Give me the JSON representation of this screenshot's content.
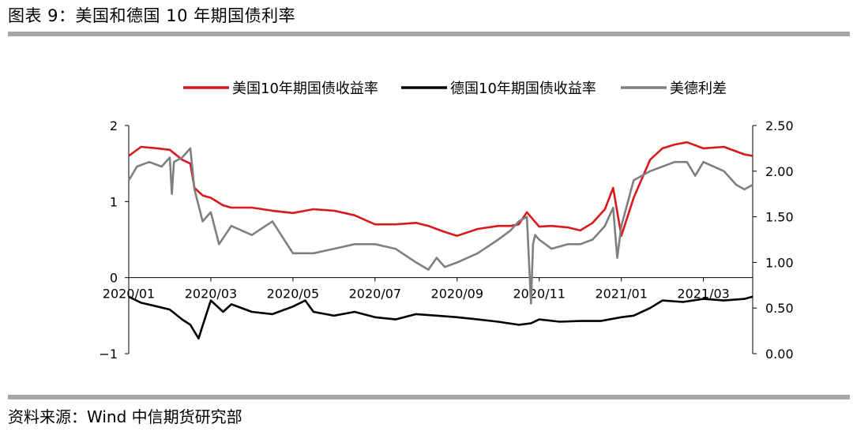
{
  "figure": {
    "title": "图表 9：美国和德国 10 年期国债利率",
    "source": "资料来源：Wind 中信期货研究部"
  },
  "colors": {
    "us": "#d7191c",
    "de": "#000000",
    "spread": "#7f7f7f",
    "rule": "#a6a6a6"
  },
  "chart_data": {
    "type": "line",
    "title": "",
    "legend_position": "top",
    "x_tick_labels": [
      "2020/01",
      "2020/03",
      "2020/05",
      "2020/07",
      "2020/09",
      "2020/11",
      "2021/01",
      "2021/03"
    ],
    "x_tick_months": [
      0,
      2,
      4,
      6,
      8,
      10,
      12,
      14
    ],
    "x_range_months": [
      0,
      15.2
    ],
    "y_left": {
      "range": [
        -1,
        2
      ],
      "ticks": [
        "2",
        "1",
        "0",
        "−1"
      ]
    },
    "y_right": {
      "range": [
        0,
        2.5
      ],
      "ticks": [
        "2.50",
        "2.00",
        "1.50",
        "1.00",
        "0.50",
        "0.00"
      ]
    },
    "series": [
      {
        "name": "美国10年期国债收益率",
        "axis": "left",
        "color": "#d7191c",
        "x": [
          0,
          0.3,
          0.7,
          1.0,
          1.3,
          1.5,
          1.6,
          1.8,
          2.0,
          2.3,
          2.5,
          3.0,
          3.5,
          4.0,
          4.5,
          5.0,
          5.5,
          6.0,
          6.5,
          7.0,
          7.3,
          7.7,
          8.0,
          8.5,
          9.0,
          9.3,
          9.5,
          9.7,
          10.0,
          10.3,
          10.7,
          11.0,
          11.3,
          11.6,
          11.8,
          12.0,
          12.3,
          12.7,
          13.0,
          13.3,
          13.6,
          14.0,
          14.5,
          15.0,
          15.2
        ],
        "y": [
          1.6,
          1.72,
          1.7,
          1.68,
          1.55,
          1.5,
          1.18,
          1.08,
          1.05,
          0.95,
          0.92,
          0.92,
          0.88,
          0.85,
          0.9,
          0.88,
          0.82,
          0.7,
          0.7,
          0.72,
          0.68,
          0.6,
          0.55,
          0.64,
          0.68,
          0.68,
          0.7,
          0.86,
          0.67,
          0.68,
          0.66,
          0.62,
          0.72,
          0.9,
          1.18,
          0.55,
          1.05,
          1.55,
          1.7,
          1.75,
          1.78,
          1.7,
          1.72,
          1.62,
          1.6
        ]
      },
      {
        "name": "德国10年期国债收益率",
        "axis": "left",
        "color": "#000000",
        "x": [
          0,
          0.3,
          0.7,
          1.0,
          1.3,
          1.5,
          1.7,
          1.8,
          2.0,
          2.3,
          2.5,
          3.0,
          3.5,
          4.0,
          4.3,
          4.5,
          5.0,
          5.5,
          6.0,
          6.5,
          7.0,
          7.5,
          8.0,
          8.5,
          9.0,
          9.5,
          9.8,
          10.0,
          10.5,
          11.0,
          11.5,
          12.0,
          12.3,
          12.7,
          13.0,
          13.5,
          14.0,
          14.5,
          15.0,
          15.2
        ],
        "y": [
          -0.25,
          -0.33,
          -0.38,
          -0.42,
          -0.55,
          -0.62,
          -0.8,
          -0.63,
          -0.3,
          -0.45,
          -0.35,
          -0.45,
          -0.48,
          -0.38,
          -0.3,
          -0.45,
          -0.5,
          -0.45,
          -0.52,
          -0.55,
          -0.48,
          -0.5,
          -0.52,
          -0.55,
          -0.58,
          -0.62,
          -0.6,
          -0.55,
          -0.58,
          -0.57,
          -0.57,
          -0.52,
          -0.5,
          -0.4,
          -0.3,
          -0.32,
          -0.28,
          -0.3,
          -0.28,
          -0.25
        ]
      },
      {
        "name": "美德利差",
        "axis": "right",
        "color": "#7f7f7f",
        "x": [
          0,
          0.2,
          0.5,
          0.8,
          1.0,
          1.05,
          1.1,
          1.3,
          1.5,
          1.6,
          1.8,
          2.0,
          2.2,
          2.5,
          3.0,
          3.5,
          4.0,
          4.5,
          5.0,
          5.5,
          6.0,
          6.5,
          7.0,
          7.3,
          7.5,
          7.7,
          8.0,
          8.5,
          9.0,
          9.3,
          9.5,
          9.7,
          9.8,
          9.85,
          9.9,
          10.0,
          10.3,
          10.7,
          11.0,
          11.3,
          11.6,
          11.8,
          11.9,
          12.0,
          12.3,
          12.7,
          13.0,
          13.3,
          13.6,
          13.8,
          14.0,
          14.5,
          14.8,
          15.0,
          15.2
        ],
        "y": [
          1.9,
          2.05,
          2.1,
          2.05,
          2.15,
          1.75,
          2.1,
          2.15,
          2.25,
          1.8,
          1.45,
          1.55,
          1.2,
          1.4,
          1.3,
          1.45,
          1.1,
          1.1,
          1.15,
          1.2,
          1.2,
          1.15,
          1.0,
          0.92,
          1.05,
          0.95,
          1.0,
          1.1,
          1.25,
          1.35,
          1.45,
          1.5,
          0.55,
          1.2,
          1.3,
          1.25,
          1.15,
          1.2,
          1.2,
          1.25,
          1.4,
          1.6,
          1.05,
          1.4,
          1.9,
          2.0,
          2.05,
          2.1,
          2.1,
          1.95,
          2.1,
          2.0,
          1.85,
          1.8,
          1.85
        ]
      }
    ]
  }
}
